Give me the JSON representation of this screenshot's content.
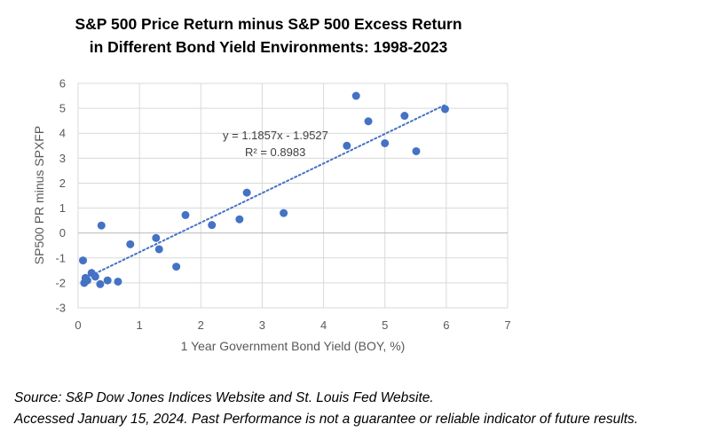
{
  "chart_data": {
    "type": "scatter",
    "title_line1": "S&P 500 Price Return minus S&P 500 Excess Return",
    "title_line2": "in Different Bond Yield Environments: 1998-2023",
    "xlabel": "1 Year Government Bond Yield (BOY, %)",
    "ylabel": "SP500 PR minus SPXFP",
    "xlim": [
      0,
      7
    ],
    "ylim": [
      -3,
      6
    ],
    "xticks": [
      "0",
      "1",
      "2",
      "3",
      "4",
      "5",
      "6",
      "7"
    ],
    "yticks": [
      "-3",
      "-2",
      "-1",
      "0",
      "1",
      "2",
      "3",
      "4",
      "5",
      "6"
    ],
    "grid": true,
    "marker_color": "#4472C4",
    "points": [
      {
        "x": 0.08,
        "y": -1.1
      },
      {
        "x": 0.1,
        "y": -2.0
      },
      {
        "x": 0.12,
        "y": -1.8
      },
      {
        "x": 0.15,
        "y": -1.9
      },
      {
        "x": 0.22,
        "y": -1.6
      },
      {
        "x": 0.28,
        "y": -1.75
      },
      {
        "x": 0.36,
        "y": -2.05
      },
      {
        "x": 0.38,
        "y": 0.3
      },
      {
        "x": 0.48,
        "y": -1.9
      },
      {
        "x": 0.65,
        "y": -1.95
      },
      {
        "x": 0.85,
        "y": -0.45
      },
      {
        "x": 1.27,
        "y": -0.2
      },
      {
        "x": 1.32,
        "y": -0.65
      },
      {
        "x": 1.6,
        "y": -1.35
      },
      {
        "x": 1.75,
        "y": 0.72
      },
      {
        "x": 2.18,
        "y": 0.32
      },
      {
        "x": 2.63,
        "y": 0.55
      },
      {
        "x": 2.75,
        "y": 1.62
      },
      {
        "x": 3.35,
        "y": 0.8
      },
      {
        "x": 4.38,
        "y": 3.5
      },
      {
        "x": 4.53,
        "y": 5.5
      },
      {
        "x": 4.73,
        "y": 4.48
      },
      {
        "x": 5.0,
        "y": 3.6
      },
      {
        "x": 5.32,
        "y": 4.7
      },
      {
        "x": 5.51,
        "y": 3.28
      },
      {
        "x": 5.98,
        "y": 4.97
      }
    ],
    "trendline": {
      "slope": 1.1857,
      "intercept": -1.9527,
      "x_range": [
        0.08,
        5.98
      ],
      "color": "#4472C4",
      "style": "dotted",
      "equation_label": "y = 1.1857x - 1.9527",
      "r2_label": "R² = 0.8983"
    }
  },
  "footer": {
    "source_line": "Source: S&P Dow Jones Indices Website and St. Louis Fed Website.",
    "disclaimer_line": "Accessed January 15, 2024. Past Performance is not a guarantee or reliable indicator of future results."
  }
}
